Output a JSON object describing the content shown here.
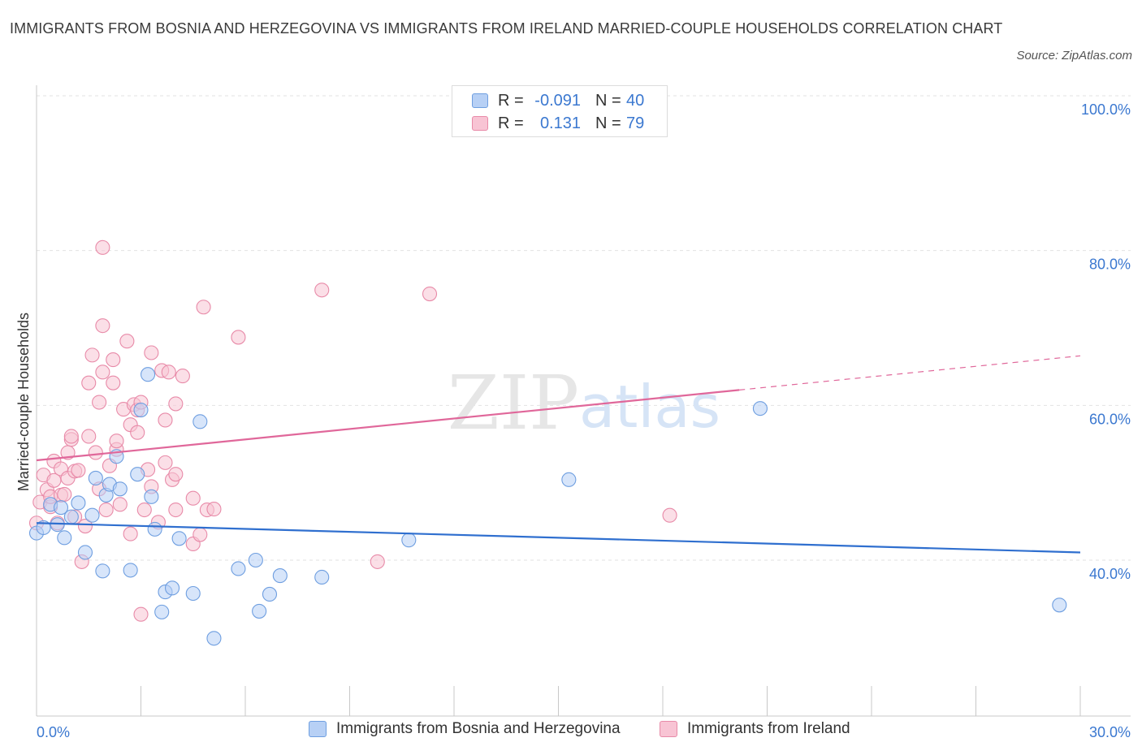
{
  "title": "IMMIGRANTS FROM BOSNIA AND HERZEGOVINA VS IMMIGRANTS FROM IRELAND MARRIED-COUPLE HOUSEHOLDS CORRELATION CHART",
  "source": "Source: ZipAtlas.com",
  "watermark": {
    "zip": "ZIP",
    "atlas": "atlas"
  },
  "colors": {
    "blue_fill": "#b7d0f5",
    "blue_stroke": "#6e9ee0",
    "blue_line": "#2f6fcf",
    "pink_fill": "#f8c4d4",
    "pink_stroke": "#e88aa8",
    "pink_line": "#e0679a",
    "tick_label": "#3b78d0"
  },
  "legend": {
    "rows": [
      {
        "r_label": "R =",
        "r_value": "-0.091",
        "n_label": "N =",
        "n_value": "40"
      },
      {
        "r_label": "R =",
        "r_value": "0.131",
        "n_label": "N =",
        "n_value": "79"
      }
    ]
  },
  "chart_data": {
    "type": "scatter",
    "title": "IMMIGRANTS FROM BOSNIA AND HERZEGOVINA VS IMMIGRANTS FROM IRELAND MARRIED-COUPLE HOUSEHOLDS CORRELATION CHART",
    "xlabel": "",
    "ylabel": "Married-couple Households",
    "xlim": [
      0,
      30
    ],
    "ylim": [
      20,
      100
    ],
    "x_ticks": [
      0,
      3,
      6,
      9,
      12,
      15,
      18,
      21,
      24,
      27,
      30
    ],
    "x_tick_labels": [
      "0.0%",
      "30.0%"
    ],
    "y_ticks": [
      40,
      60,
      80,
      100
    ],
    "y_tick_labels": [
      "40.0%",
      "60.0%",
      "80.0%",
      "100.0%"
    ],
    "grid": true,
    "legend_position": "top-center",
    "series": [
      {
        "name": "Immigrants from Bosnia and Herzegovina",
        "color": "blue",
        "r": -0.091,
        "n": 40,
        "trend": {
          "x": [
            0,
            30
          ],
          "y": [
            44.8,
            41.0
          ],
          "dashed_from": null
        },
        "points": [
          [
            0.0,
            43.5
          ],
          [
            0.2,
            44.2
          ],
          [
            0.4,
            47.2
          ],
          [
            0.6,
            44.6
          ],
          [
            0.7,
            46.8
          ],
          [
            0.8,
            42.9
          ],
          [
            1.0,
            45.6
          ],
          [
            1.2,
            47.4
          ],
          [
            1.4,
            41.0
          ],
          [
            1.6,
            45.8
          ],
          [
            1.7,
            50.6
          ],
          [
            1.9,
            38.6
          ],
          [
            2.0,
            48.4
          ],
          [
            2.1,
            49.8
          ],
          [
            2.3,
            53.4
          ],
          [
            2.4,
            49.2
          ],
          [
            2.7,
            38.7
          ],
          [
            2.9,
            51.1
          ],
          [
            3.0,
            59.4
          ],
          [
            3.2,
            64.0
          ],
          [
            3.3,
            48.2
          ],
          [
            3.4,
            44.0
          ],
          [
            3.6,
            33.3
          ],
          [
            3.7,
            35.9
          ],
          [
            3.9,
            36.4
          ],
          [
            4.1,
            42.8
          ],
          [
            4.5,
            35.7
          ],
          [
            4.7,
            57.9
          ],
          [
            5.1,
            29.9
          ],
          [
            5.8,
            38.9
          ],
          [
            6.3,
            40.0
          ],
          [
            6.4,
            33.4
          ],
          [
            6.7,
            35.6
          ],
          [
            7.0,
            38.0
          ],
          [
            8.2,
            37.8
          ],
          [
            10.7,
            42.6
          ],
          [
            15.3,
            50.4
          ],
          [
            20.8,
            59.6
          ],
          [
            29.4,
            34.2
          ]
        ]
      },
      {
        "name": "Immigrants from Ireland",
        "color": "pink",
        "r": 0.131,
        "n": 79,
        "trend": {
          "x": [
            0,
            30
          ],
          "y": [
            52.9,
            66.4
          ],
          "dashed_from": 20.2
        },
        "points": [
          [
            0.0,
            44.8
          ],
          [
            0.1,
            47.5
          ],
          [
            0.2,
            51.0
          ],
          [
            0.3,
            49.1
          ],
          [
            0.4,
            46.9
          ],
          [
            0.4,
            48.2
          ],
          [
            0.5,
            50.3
          ],
          [
            0.5,
            52.8
          ],
          [
            0.6,
            44.8
          ],
          [
            0.7,
            48.4
          ],
          [
            0.7,
            51.8
          ],
          [
            0.8,
            48.5
          ],
          [
            0.9,
            50.6
          ],
          [
            0.9,
            53.9
          ],
          [
            1.0,
            55.6
          ],
          [
            1.0,
            56.0
          ],
          [
            1.1,
            45.6
          ],
          [
            1.1,
            51.5
          ],
          [
            1.2,
            51.6
          ],
          [
            1.3,
            39.8
          ],
          [
            1.4,
            44.4
          ],
          [
            1.5,
            56.0
          ],
          [
            1.5,
            62.9
          ],
          [
            1.6,
            66.5
          ],
          [
            1.7,
            53.9
          ],
          [
            1.8,
            60.4
          ],
          [
            1.8,
            49.2
          ],
          [
            1.9,
            64.3
          ],
          [
            1.9,
            70.3
          ],
          [
            2.0,
            46.5
          ],
          [
            2.1,
            52.2
          ],
          [
            2.2,
            62.9
          ],
          [
            2.2,
            65.9
          ],
          [
            2.3,
            54.3
          ],
          [
            2.3,
            55.4
          ],
          [
            2.4,
            47.2
          ],
          [
            2.5,
            59.5
          ],
          [
            2.6,
            68.3
          ],
          [
            2.7,
            43.4
          ],
          [
            2.7,
            57.5
          ],
          [
            2.8,
            60.1
          ],
          [
            2.9,
            56.5
          ],
          [
            2.9,
            59.4
          ],
          [
            3.0,
            60.4
          ],
          [
            3.0,
            33.0
          ],
          [
            3.1,
            46.5
          ],
          [
            3.2,
            51.7
          ],
          [
            3.3,
            66.8
          ],
          [
            3.3,
            49.5
          ],
          [
            3.5,
            44.9
          ],
          [
            3.6,
            64.5
          ],
          [
            3.7,
            58.1
          ],
          [
            3.7,
            52.6
          ],
          [
            3.8,
            64.3
          ],
          [
            3.9,
            50.4
          ],
          [
            4.0,
            60.2
          ],
          [
            4.0,
            46.5
          ],
          [
            4.0,
            51.1
          ],
          [
            4.2,
            63.8
          ],
          [
            4.5,
            48.0
          ],
          [
            4.5,
            42.1
          ],
          [
            4.7,
            43.3
          ],
          [
            4.8,
            72.7
          ],
          [
            4.9,
            46.5
          ],
          [
            5.1,
            46.6
          ],
          [
            5.8,
            68.8
          ],
          [
            8.2,
            74.9
          ],
          [
            9.8,
            39.8
          ],
          [
            11.3,
            74.4
          ],
          [
            18.2,
            45.8
          ],
          [
            1.9,
            80.4
          ]
        ]
      }
    ]
  },
  "bottom_legend": [
    {
      "label": "Immigrants from Bosnia and Herzegovina"
    },
    {
      "label": "Immigrants from Ireland"
    }
  ]
}
